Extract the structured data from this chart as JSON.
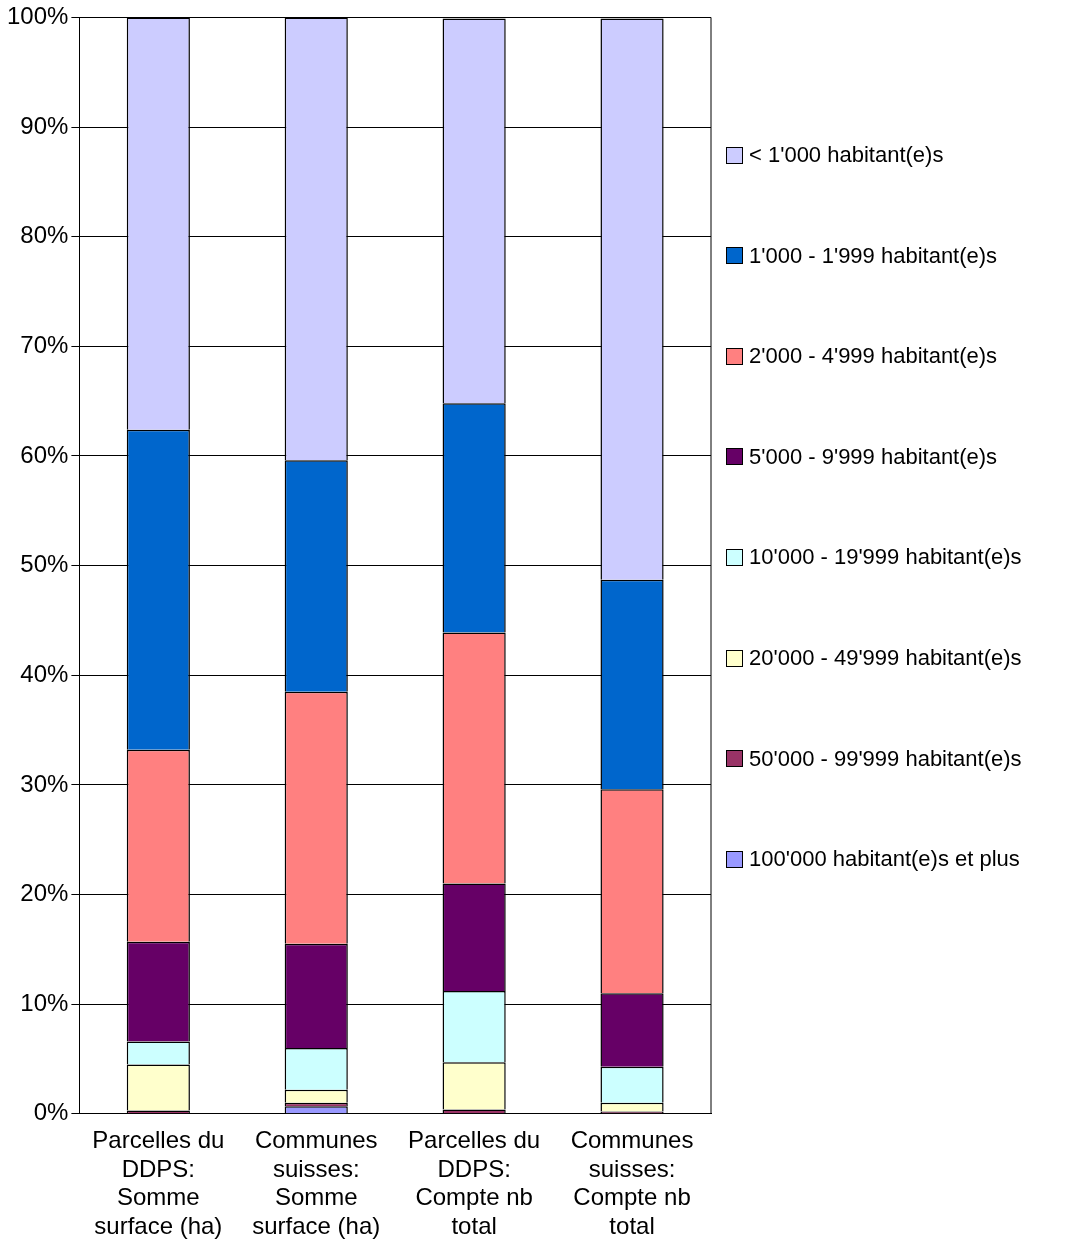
{
  "chart_data": {
    "type": "bar",
    "stacked": true,
    "categories": [
      "Parcelles du DDPS: Somme surface (ha)",
      "Communes suisses: Somme surface (ha)",
      "Parcelles du DDPS: Compte nb total",
      "Communes suisses: Compte nb total"
    ],
    "ylim": [
      0,
      100
    ],
    "yticks": [
      {
        "value": 0,
        "label": "0%"
      },
      {
        "value": 10,
        "label": "10%"
      },
      {
        "value": 20,
        "label": "20%"
      },
      {
        "value": 30,
        "label": "30%"
      },
      {
        "value": 40,
        "label": "40%"
      },
      {
        "value": 50,
        "label": "50%"
      },
      {
        "value": 60,
        "label": "60%"
      },
      {
        "value": 70,
        "label": "70%"
      },
      {
        "value": 80,
        "label": "80%"
      },
      {
        "value": 90,
        "label": "90%"
      },
      {
        "value": 100,
        "label": "100%"
      }
    ],
    "grid": "y",
    "legend": "right",
    "series": [
      {
        "name": "100'000 habitant(e)s et plus",
        "color": "#9999ff",
        "values": [
          0,
          0.7,
          null,
          null
        ]
      },
      {
        "name": "50'000 - 99'999 habitant(e)s",
        "color": "#993366",
        "values": [
          0.3,
          0.3,
          0.4,
          0.2
        ]
      },
      {
        "name": "20'000 - 49'999 habitant(e)s",
        "color": "#ffffcc",
        "values": [
          4.2,
          1.2,
          4.3,
          0.8
        ]
      },
      {
        "name": "10'000 - 19'999 habitant(e)s",
        "color": "#ccffff",
        "values": [
          2.1,
          3.8,
          6.5,
          3.3
        ]
      },
      {
        "name": "5'000 - 9'999 habitant(e)s",
        "color": "#660066",
        "values": [
          9.1,
          9.5,
          9.8,
          6.7
        ]
      },
      {
        "name": "2'000 - 4'999 habitant(e)s",
        "color": "#ff8080",
        "values": [
          17.5,
          23.0,
          22.9,
          18.6
        ]
      },
      {
        "name": "1'000 - 1'999 habitant(e)s",
        "color": "#0066cc",
        "values": [
          29.2,
          21.1,
          20.9,
          19.1
        ]
      },
      {
        "name": "< 1'000 habitant(e)s",
        "color": "#ccccff",
        "values": [
          37.6,
          40.4,
          35.1,
          51.2
        ]
      }
    ]
  }
}
